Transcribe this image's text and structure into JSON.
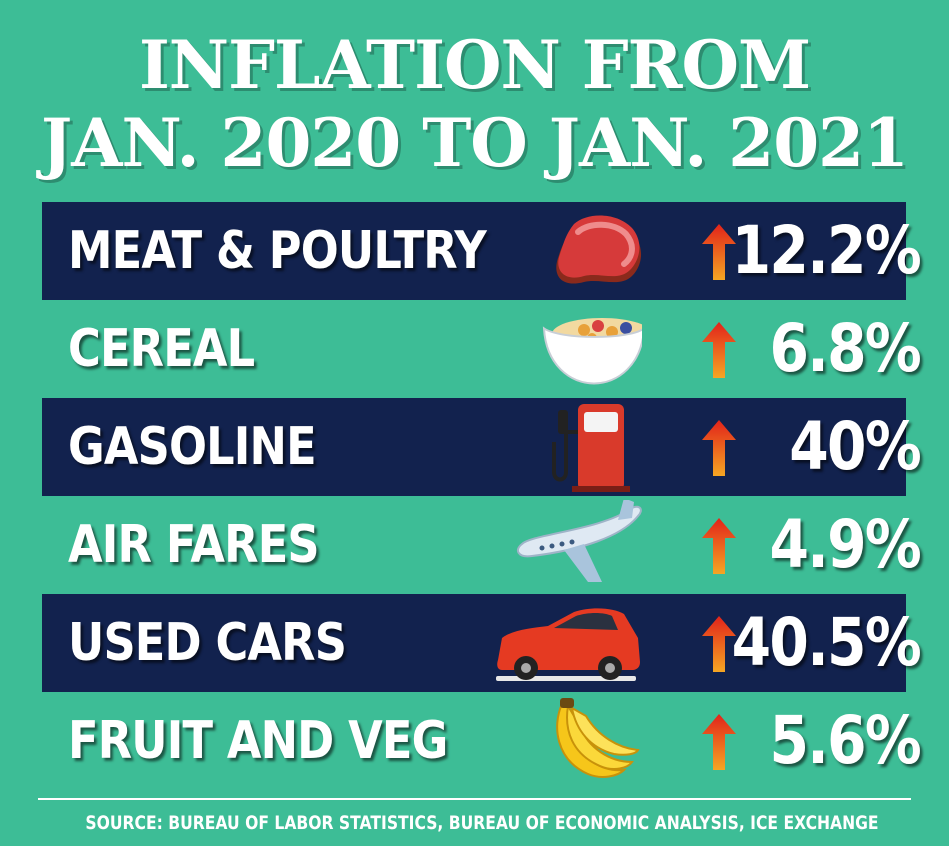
{
  "title": {
    "line1": "INFLATION FROM",
    "line2": "JAN. 2020 TO JAN. 2021"
  },
  "colors": {
    "background": "#3dbd96",
    "dark_band": "#12224e",
    "text": "#ffffff",
    "arrow_top": "#e2231a",
    "arrow_bottom": "#f5a623"
  },
  "chart_data": {
    "type": "table",
    "title": "INFLATION FROM JAN. 2020 TO JAN. 2021",
    "categories": [
      "MEAT & POULTRY",
      "CEREAL",
      "GASOLINE",
      "AIR FARES",
      "USED CARS",
      "FRUIT AND VEG"
    ],
    "values": [
      12.2,
      6.8,
      40,
      4.9,
      40.5,
      5.6
    ],
    "rows": [
      {
        "label": "MEAT & POULTRY",
        "icon": "steak-icon",
        "direction": "up-arrow-icon",
        "value": "12.2%"
      },
      {
        "label": "CEREAL",
        "icon": "cereal-bowl-icon",
        "direction": "up-arrow-icon",
        "value": "6.8%"
      },
      {
        "label": "GASOLINE",
        "icon": "gas-pump-icon",
        "direction": "up-arrow-icon",
        "value": "40%"
      },
      {
        "label": "AIR FARES",
        "icon": "airplane-icon",
        "direction": "up-arrow-icon",
        "value": "4.9%"
      },
      {
        "label": "USED CARS",
        "icon": "car-icon",
        "direction": "up-arrow-icon",
        "value": "40.5%"
      },
      {
        "label": "FRUIT AND VEG",
        "icon": "banana-icon",
        "direction": "up-arrow-icon",
        "value": "5.6%"
      }
    ]
  },
  "source": "SOURCE: BUREAU OF LABOR STATISTICS, BUREAU OF ECONOMIC ANALYSIS, ICE EXCHANGE"
}
